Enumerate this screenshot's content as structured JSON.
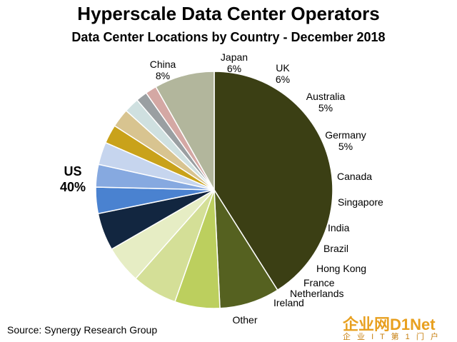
{
  "chart_data": {
    "type": "pie",
    "title": "Hyperscale Data Center Operators",
    "subtitle": "Data Center Locations by Country - December 2018",
    "source": "Source: Synergy Research Group",
    "slices": [
      {
        "label": "US",
        "value": 40,
        "value_label": "40%",
        "color": "#3b3f14"
      },
      {
        "label": "China",
        "value": 8,
        "value_label": "8%",
        "color": "#556120"
      },
      {
        "label": "Japan",
        "value": 6,
        "value_label": "6%",
        "color": "#bccf5e"
      },
      {
        "label": "UK",
        "value": 6,
        "value_label": "6%",
        "color": "#d4df97"
      },
      {
        "label": "Australia",
        "value": 5,
        "value_label": "5%",
        "color": "#e6edc4"
      },
      {
        "label": "Germany",
        "value": 5,
        "value_label": "5%",
        "color": "#122640"
      },
      {
        "label": "Canada",
        "value": 3.5,
        "value_label": "",
        "color": "#4a82d0"
      },
      {
        "label": "Singapore",
        "value": 3,
        "value_label": "",
        "color": "#86a9e0"
      },
      {
        "label": "India",
        "value": 3,
        "value_label": "",
        "color": "#c6d5ee"
      },
      {
        "label": "Brazil",
        "value": 2.5,
        "value_label": "",
        "color": "#c9a21a"
      },
      {
        "label": "Hong Kong",
        "value": 2.5,
        "value_label": "",
        "color": "#d8c490"
      },
      {
        "label": "France",
        "value": 2,
        "value_label": "",
        "color": "#cfe0e0"
      },
      {
        "label": "Netherlands",
        "value": 1.5,
        "value_label": "",
        "color": "#9a9fa2"
      },
      {
        "label": "Ireland",
        "value": 1.5,
        "value_label": "",
        "color": "#d4a8a4"
      },
      {
        "label": "Other",
        "value": 8,
        "value_label": "",
        "color": "#b2b69c"
      }
    ]
  },
  "watermark": {
    "main": "企业网D1Net",
    "sub": "企 业 I T 第 1 门 户"
  }
}
